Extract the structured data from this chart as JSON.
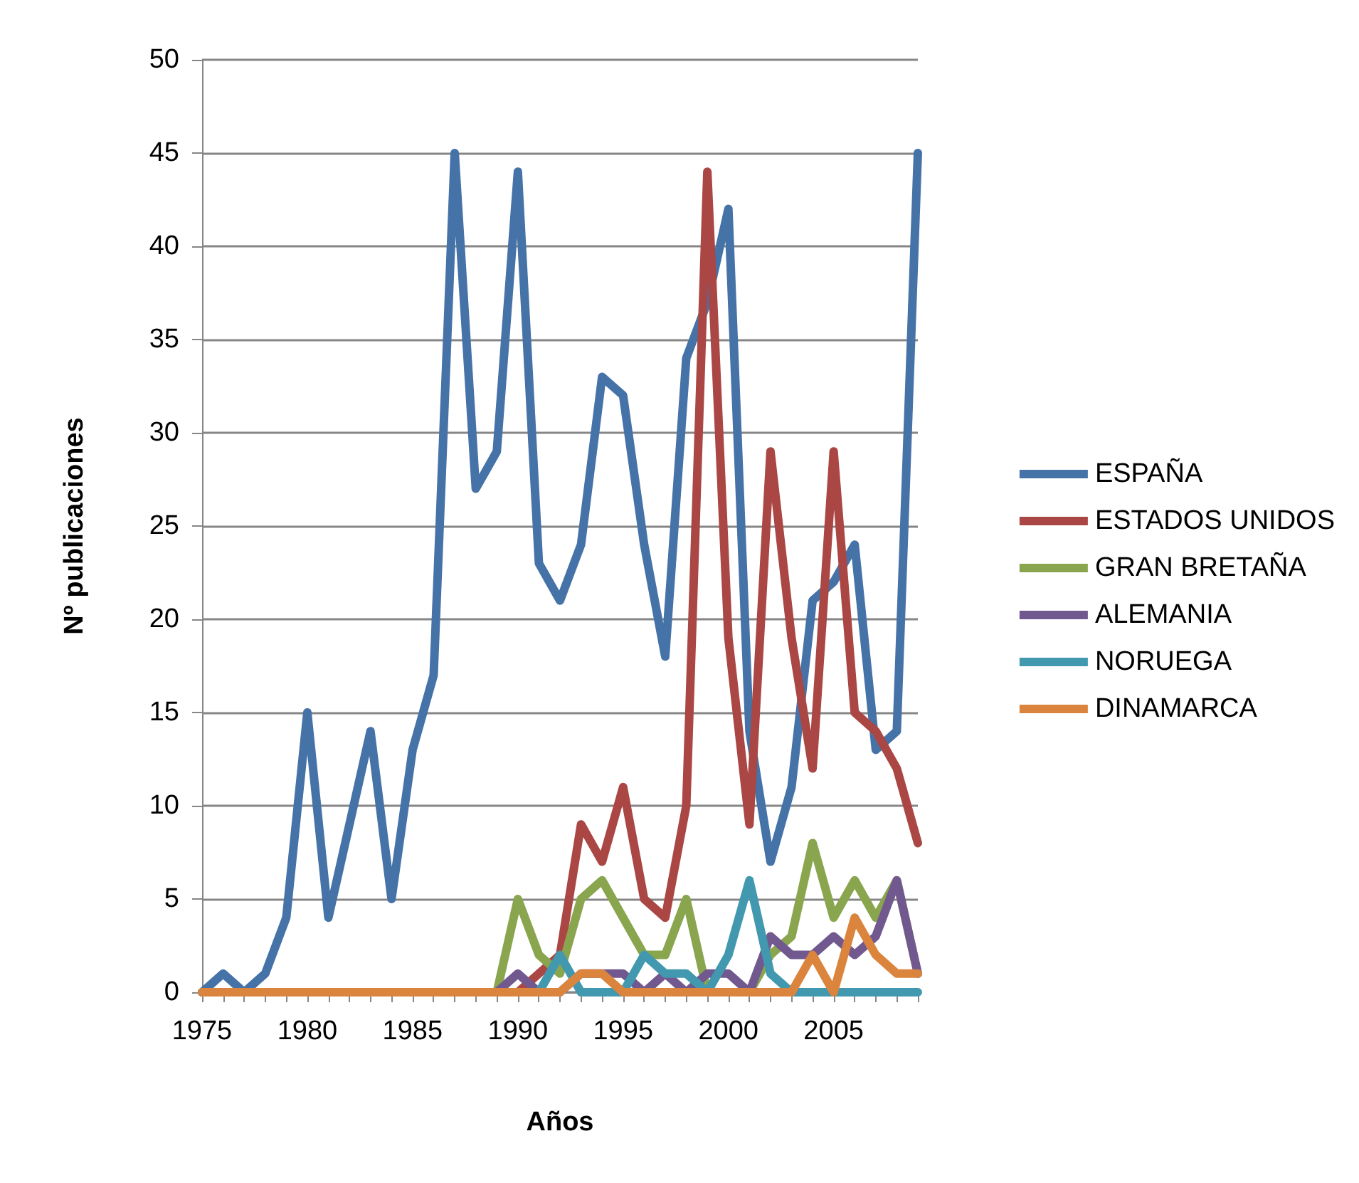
{
  "chart_data": {
    "type": "line",
    "xlabel": "Años",
    "ylabel": "Nº publicaciones",
    "categories": [
      "1975",
      null,
      null,
      null,
      null,
      "1980",
      null,
      null,
      null,
      null,
      "1985",
      null,
      null,
      null,
      null,
      "1990",
      null,
      null,
      null,
      null,
      "1995",
      null,
      null,
      null,
      null,
      "2000",
      null,
      null,
      null,
      null,
      "2005",
      null,
      null,
      null,
      null
    ],
    "series": [
      {
        "name": "ESPAÑA",
        "color": "#4572a7",
        "values": [
          0,
          1,
          0,
          1,
          4,
          15,
          4,
          9,
          14,
          5,
          13,
          17,
          45,
          27,
          29,
          44,
          23,
          21,
          24,
          33,
          32,
          24,
          18,
          34,
          37,
          42,
          14,
          7,
          11,
          21,
          22,
          24,
          13,
          14,
          45
        ]
      },
      {
        "name": "ESTADOS UNIDOS",
        "color": "#aa4643",
        "values": [
          0,
          0,
          0,
          0,
          0,
          0,
          0,
          0,
          0,
          0,
          0,
          0,
          0,
          0,
          0,
          0,
          1,
          2,
          9,
          7,
          11,
          5,
          4,
          10,
          44,
          19,
          9,
          29,
          19,
          12,
          29,
          15,
          14,
          12,
          8
        ]
      },
      {
        "name": "GRAN BRETAÑA",
        "color": "#89a54e",
        "values": [
          0,
          0,
          0,
          0,
          0,
          0,
          0,
          0,
          0,
          0,
          0,
          0,
          0,
          0,
          0,
          5,
          2,
          1,
          5,
          6,
          4,
          2,
          2,
          5,
          0,
          0,
          0,
          2,
          3,
          8,
          4,
          6,
          4,
          6,
          1
        ]
      },
      {
        "name": "ALEMANIA",
        "color": "#71588f",
        "values": [
          0,
          0,
          0,
          0,
          0,
          0,
          0,
          0,
          0,
          0,
          0,
          0,
          0,
          0,
          0,
          1,
          0,
          0,
          1,
          1,
          1,
          0,
          1,
          0,
          1,
          1,
          0,
          3,
          2,
          2,
          3,
          2,
          3,
          6,
          1
        ]
      },
      {
        "name": "NORUEGA",
        "color": "#4198af",
        "values": [
          0,
          0,
          0,
          0,
          0,
          0,
          0,
          0,
          0,
          0,
          0,
          0,
          0,
          0,
          0,
          0,
          0,
          2,
          0,
          0,
          0,
          2,
          1,
          1,
          0,
          2,
          6,
          1,
          0,
          0,
          0,
          0,
          0,
          0,
          0
        ]
      },
      {
        "name": "DINAMARCA",
        "color": "#db843d",
        "values": [
          0,
          0,
          0,
          0,
          0,
          0,
          0,
          0,
          0,
          0,
          0,
          0,
          0,
          0,
          0,
          0,
          0,
          0,
          1,
          1,
          0,
          0,
          0,
          0,
          0,
          0,
          0,
          0,
          0,
          2,
          0,
          4,
          2,
          1,
          1
        ]
      }
    ],
    "ylim": [
      0,
      50
    ],
    "yticks": [
      0,
      5,
      10,
      15,
      20,
      25,
      30,
      35,
      40,
      45,
      50
    ],
    "grid": "y",
    "legend": "right",
    "marker": "none",
    "line_style": "solid"
  }
}
